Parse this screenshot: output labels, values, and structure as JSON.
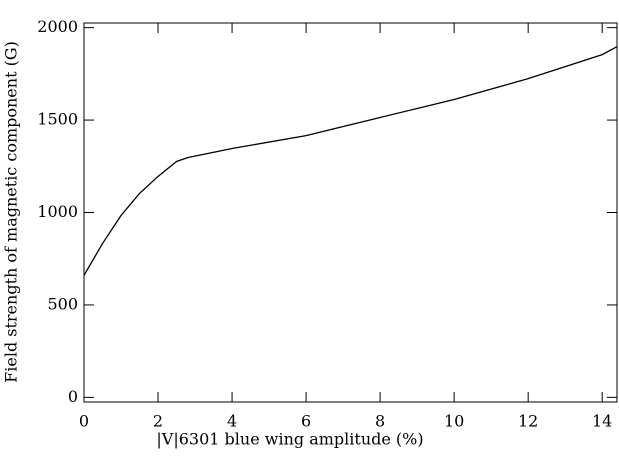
{
  "chart_data": {
    "type": "line",
    "xlabel": "|V|6301 blue wing amplitude (%)",
    "ylabel": "Field strength of magnetic component (G)",
    "x": [
      0,
      0.5,
      1,
      1.5,
      2,
      2.5,
      2.8,
      4,
      6,
      8,
      10,
      12,
      14,
      14.4
    ],
    "series": [
      {
        "color": "#000000",
        "values": [
          660,
          832,
          984,
          1103,
          1195,
          1276,
          1297,
          1346,
          1416,
          1514,
          1611,
          1724,
          1854,
          1897
        ]
      }
    ],
    "xlim": [
      0,
      14.4
    ],
    "xticks": [
      0,
      2,
      4,
      6,
      8,
      10,
      12,
      14
    ],
    "ylim": [
      -25,
      2025
    ],
    "yticks": [
      0,
      500,
      1000,
      1500,
      2000
    ]
  }
}
